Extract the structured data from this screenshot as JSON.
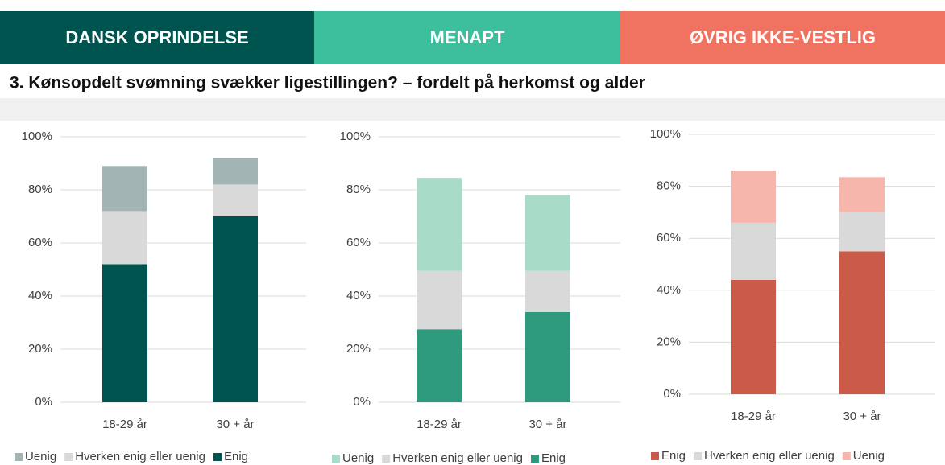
{
  "header": {
    "labels": [
      "DANSK OPRINDELSE",
      "MENAPT",
      "ØVRIG IKKE-VESTLIG"
    ],
    "colors": [
      "#005450",
      "#3dbf9e",
      "#f07361"
    ]
  },
  "title": "3. Kønsopdelt svømning svækker ligestillingen? – fordelt på herkomst og alder",
  "chart_data": [
    {
      "type": "stacked_bar",
      "categories": [
        "18-29 år",
        "30 + år"
      ],
      "stack_from": "last",
      "series": [
        {
          "name": "Uenig",
          "color": "#a3b4b4",
          "values": [
            17,
            10
          ]
        },
        {
          "name": "Hverken enig eller uenig",
          "color": "#d9d9d9",
          "values": [
            20,
            12
          ]
        },
        {
          "name": "Enig",
          "color": "#005450",
          "values": [
            52,
            70
          ]
        }
      ],
      "ylim": [
        0,
        100
      ],
      "yticks": [
        {
          "value": 0,
          "label": "0%"
        },
        {
          "value": 20,
          "label": "20%"
        },
        {
          "value": 40,
          "label": "40%"
        },
        {
          "value": 60,
          "label": "60%"
        },
        {
          "value": 80,
          "label": "80%"
        },
        {
          "value": 100,
          "label": "100%"
        }
      ],
      "grid": true
    },
    {
      "type": "stacked_bar",
      "categories": [
        "18-29 år",
        "30 + år"
      ],
      "stack_from": "last",
      "series": [
        {
          "name": "Uenig",
          "color": "#a8dcc8",
          "values": [
            35,
            28.5
          ]
        },
        {
          "name": "Hverken enig eller uenig",
          "color": "#d9d9d9",
          "values": [
            22,
            15.5
          ]
        },
        {
          "name": "Enig",
          "color": "#2e9a7e",
          "values": [
            27.5,
            34
          ]
        }
      ],
      "ylim": [
        0,
        100
      ],
      "yticks": [
        {
          "value": 0,
          "label": "0%"
        },
        {
          "value": 20,
          "label": "20%"
        },
        {
          "value": 40,
          "label": "40%"
        },
        {
          "value": 60,
          "label": "60%"
        },
        {
          "value": 80,
          "label": "80%"
        },
        {
          "value": 100,
          "label": "100%"
        }
      ],
      "grid": true
    },
    {
      "type": "stacked_bar",
      "categories": [
        "18-29 år",
        "30 + år"
      ],
      "stack_from": "first",
      "series": [
        {
          "name": "Enig",
          "color": "#c95b48",
          "values": [
            44,
            55
          ]
        },
        {
          "name": "Hverken enig eller uenig",
          "color": "#d9d9d9",
          "values": [
            22,
            15
          ]
        },
        {
          "name": "Uenig",
          "color": "#f7b6ab",
          "values": [
            20,
            13.5
          ]
        }
      ],
      "ylim": [
        0,
        100
      ],
      "yticks": [
        {
          "value": 0,
          "label": "0%"
        },
        {
          "value": 20,
          "label": "20%"
        },
        {
          "value": 40,
          "label": "40%"
        },
        {
          "value": 60,
          "label": "60%"
        },
        {
          "value": 80,
          "label": "80%"
        },
        {
          "value": 100,
          "label": "100%"
        }
      ],
      "grid": true
    }
  ]
}
